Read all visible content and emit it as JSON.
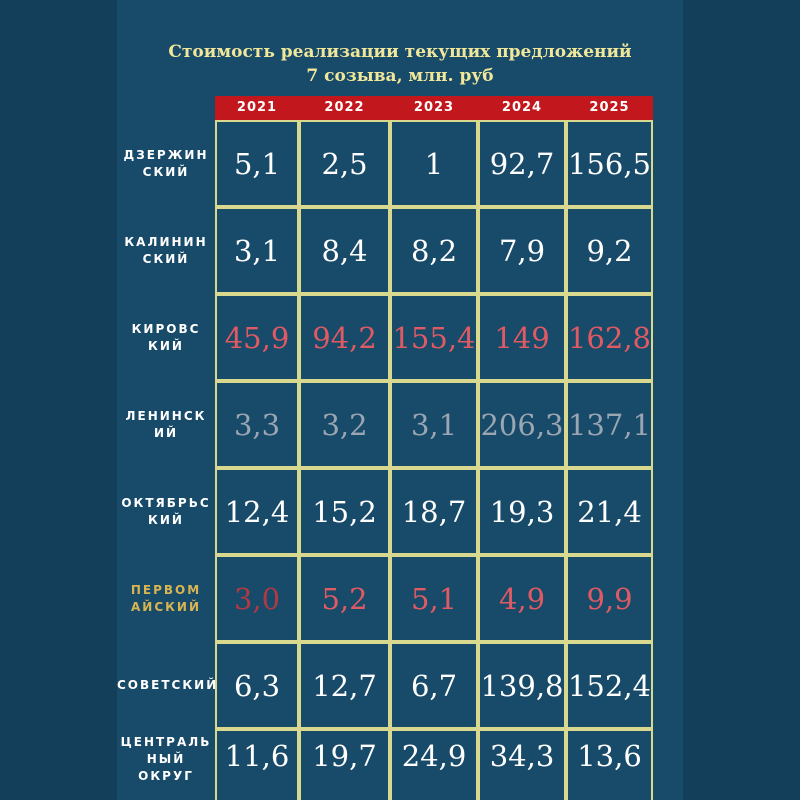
{
  "title_line1": "Стоимость реализации текущих предложений",
  "title_line2": "7 созыва, млн. руб",
  "chart_data": {
    "type": "table",
    "title": "Стоимость реализации текущих предложений 7 созыва, млн. руб",
    "columns": [
      "2021",
      "2022",
      "2023",
      "2024",
      "2025"
    ],
    "rows": [
      {
        "label_lines": [
          "ДЗЕРЖИН",
          "СКИЙ"
        ],
        "label_color": "#ffffff",
        "values": [
          "5,1",
          "2,5",
          "1",
          "92,7",
          "156,5"
        ],
        "value_color": "#ffffff"
      },
      {
        "label_lines": [
          "КАЛИНИН",
          "СКИЙ"
        ],
        "label_color": "#ffffff",
        "values": [
          "3,1",
          "8,4",
          "8,2",
          "7,9",
          "9,2"
        ],
        "value_color": "#ffffff"
      },
      {
        "label_lines": [
          "КИРОВС",
          "КИЙ"
        ],
        "label_color": "#ffffff",
        "values": [
          "45,9",
          "94,2",
          "155,4",
          "149",
          "162,8"
        ],
        "value_color": "#e05a63"
      },
      {
        "label_lines": [
          "ЛЕНИНСК",
          "ИЙ"
        ],
        "label_color": "#ffffff",
        "values": [
          "3,3",
          "3,2",
          "3,1",
          "206,3",
          "137,1"
        ],
        "value_color": "#9aa6b2"
      },
      {
        "label_lines": [
          "ОКТЯБРЬС",
          "КИЙ"
        ],
        "label_color": "#ffffff",
        "values": [
          "12,4",
          "15,2",
          "18,7",
          "19,3",
          "21,4"
        ],
        "value_color": "#ffffff"
      },
      {
        "label_lines": [
          "ПЕРВОМ",
          "АЙСКИЙ"
        ],
        "label_color": "#d9b552",
        "values": [
          "3,0",
          "5,2",
          "5,1",
          "4,9",
          "9,9"
        ],
        "value_colors": [
          "#b03a44",
          "#e05a63",
          "#e05a63",
          "#e05a63",
          "#e05a63"
        ]
      },
      {
        "label_lines": [
          "СОВЕТСКИЙ"
        ],
        "label_color": "#ffffff",
        "values": [
          "6,3",
          "12,7",
          "6,7",
          "139,8",
          "152,4"
        ],
        "value_color": "#ffffff"
      },
      {
        "label_lines": [
          "ЦЕНТРАЛЬ",
          "НЫЙ ОКРУГ"
        ],
        "label_color": "#ffffff",
        "values": [
          "11,6",
          "19,7",
          "24,9",
          "34,3",
          "13,6"
        ],
        "value_color": "#ffffff"
      }
    ]
  },
  "colors": {
    "background": "#133f5b",
    "panel": "#184a69",
    "header_bar": "#c2171c",
    "grid_line": "#d8d98e",
    "title": "#f1e79b"
  }
}
